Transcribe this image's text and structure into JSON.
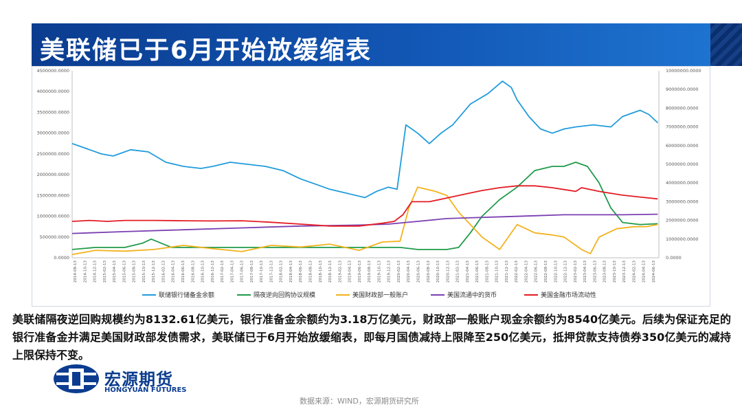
{
  "slide": {
    "title": "美联储已于6月开始放缓缩表",
    "body": "美联储隔夜逆回购规模约为8132.61亿美元，银行准备金余额约为3.18万亿美元，财政部一般账户现金余额约为8540亿美元。后续为保证充足的银行准备金并满足美国财政部发债需求，美联储已于6月开始放缓缩表，即每月国债减持上限降至250亿美元，抵押贷款支持债券350亿美元的减持上限保持不变。",
    "source": "数据来源：WIND，宏源期货研究所",
    "logo_cn": "宏源期货",
    "logo_en": "HONGYUAN FUTURES",
    "colors": {
      "title_bg": "#0b3c8f",
      "logo": "#0b3c8f",
      "accent_stripe": "#163f86"
    }
  },
  "chart_data": {
    "type": "line",
    "y_left": {
      "ticks": [
        "0.0000",
        "500000.0000",
        "1000000.0000",
        "1500000.0000",
        "2000000.0000",
        "2500000.0000",
        "3000000.0000",
        "3500000.0000",
        "4000000.0000",
        "4500000.0000"
      ],
      "range": [
        0,
        4500000
      ]
    },
    "y_right": {
      "ticks": [
        "0.0000",
        "1000000.0000",
        "2000000.0000",
        "3000000.0000",
        "4000000.0000",
        "5000000.0000",
        "6000000.0000",
        "7000000.0000",
        "8000000.0000",
        "9000000.0000",
        "10000000.0000"
      ],
      "range": [
        0,
        10000000
      ]
    },
    "x_labels": [
      "2014-08-13",
      "2014-10-13",
      "2014-12-13",
      "2015-02-13",
      "2015-04-13",
      "2015-06-13",
      "2015-08-13",
      "2015-10-13",
      "2015-12-13",
      "2016-02-13",
      "2016-04-13",
      "2016-06-13",
      "2016-08-13",
      "2016-10-13",
      "2016-12-13",
      "2017-02-13",
      "2017-04-13",
      "2017-06-13",
      "2017-08-13",
      "2017-10-13",
      "2017-12-13",
      "2018-02-13",
      "2018-04-13",
      "2018-06-13",
      "2018-08-13",
      "2018-10-13",
      "2018-12-13",
      "2019-02-13",
      "2019-04-13",
      "2019-06-13",
      "2019-08-13",
      "2019-10-13",
      "2019-12-13",
      "2020-02-13",
      "2020-04-13",
      "2020-06-13",
      "2020-08-13",
      "2020-10-13",
      "2020-12-13",
      "2021-02-13",
      "2021-04-13",
      "2021-06-13",
      "2021-08-13",
      "2021-10-13",
      "2021-12-13",
      "2022-02-13",
      "2022-04-13",
      "2022-06-13",
      "2022-08-13",
      "2022-10-13",
      "2022-12-13",
      "2023-02-13",
      "2023-04-13",
      "2023-06-13",
      "2023-08-13",
      "2023-10-13",
      "2023-12-13",
      "2024-02-13",
      "2024-04-13",
      "2024-06-13"
    ],
    "grid": false,
    "legend_position": "bottom",
    "series": [
      {
        "name": "联储银行储备金余额",
        "axis": "left",
        "color": "#1f9bdc",
        "x": [
          2014.6,
          2014.9,
          2015.1,
          2015.3,
          2015.6,
          2015.9,
          2016.2,
          2016.5,
          2016.8,
          2017.0,
          2017.3,
          2017.6,
          2017.9,
          2018.2,
          2018.5,
          2018.8,
          2019.0,
          2019.3,
          2019.6,
          2019.8,
          2020.0,
          2020.15,
          2020.3,
          2020.5,
          2020.7,
          2020.9,
          2021.1,
          2021.4,
          2021.7,
          2021.95,
          2022.1,
          2022.2,
          2022.4,
          2022.6,
          2022.8,
          2023.0,
          2023.2,
          2023.5,
          2023.8,
          2024.0,
          2024.3,
          2024.45,
          2024.6
        ],
        "values": [
          2750000,
          2600000,
          2500000,
          2450000,
          2600000,
          2550000,
          2300000,
          2200000,
          2150000,
          2200000,
          2300000,
          2250000,
          2200000,
          2100000,
          1900000,
          1750000,
          1650000,
          1550000,
          1450000,
          1600000,
          1700000,
          1650000,
          3200000,
          3000000,
          2750000,
          3000000,
          3200000,
          3700000,
          3950000,
          4250000,
          4100000,
          3800000,
          3400000,
          3100000,
          3000000,
          3100000,
          3150000,
          3200000,
          3150000,
          3400000,
          3550000,
          3450000,
          3250000
        ]
      },
      {
        "name": "隔夜逆向回购协议规模",
        "axis": "left",
        "color": "#1f9a4a",
        "x": [
          2014.6,
          2015.0,
          2015.5,
          2015.8,
          2015.95,
          2016.3,
          2016.8,
          2017.3,
          2017.8,
          2018.3,
          2018.8,
          2019.3,
          2019.8,
          2020.2,
          2020.5,
          2020.8,
          2021.0,
          2021.2,
          2021.4,
          2021.6,
          2021.9,
          2022.2,
          2022.5,
          2022.8,
          2023.0,
          2023.2,
          2023.4,
          2023.6,
          2023.8,
          2024.0,
          2024.3,
          2024.6
        ],
        "values": [
          200000,
          250000,
          250000,
          350000,
          450000,
          250000,
          250000,
          250000,
          250000,
          250000,
          250000,
          250000,
          250000,
          250000,
          200000,
          200000,
          200000,
          250000,
          600000,
          1000000,
          1400000,
          1700000,
          2100000,
          2200000,
          2200000,
          2300000,
          2200000,
          1800000,
          1200000,
          850000,
          800000,
          820000
        ]
      },
      {
        "name": "美国财政部一般账户",
        "axis": "left",
        "color": "#f2b21d",
        "x": [
          2014.6,
          2015.0,
          2015.5,
          2016.0,
          2016.5,
          2017.0,
          2017.5,
          2018.0,
          2018.5,
          2019.0,
          2019.5,
          2019.9,
          2020.2,
          2020.35,
          2020.5,
          2020.8,
          2021.0,
          2021.2,
          2021.4,
          2021.6,
          2021.9,
          2022.2,
          2022.5,
          2022.8,
          2023.0,
          2023.3,
          2023.45,
          2023.6,
          2023.9,
          2024.2,
          2024.4,
          2024.6
        ],
        "values": [
          80000,
          180000,
          160000,
          200000,
          300000,
          220000,
          150000,
          300000,
          260000,
          330000,
          180000,
          380000,
          400000,
          1200000,
          1700000,
          1600000,
          1500000,
          1100000,
          800000,
          500000,
          200000,
          800000,
          600000,
          550000,
          500000,
          200000,
          100000,
          500000,
          700000,
          750000,
          750000,
          800000
        ]
      },
      {
        "name": "美国流通中的货币",
        "axis": "right",
        "color": "#7a3fb0",
        "x": [
          2014.6,
          2015.5,
          2016.5,
          2017.5,
          2018.5,
          2019.5,
          2020.0,
          2020.5,
          2021.0,
          2021.5,
          2022.0,
          2022.5,
          2023.0,
          2023.5,
          2024.0,
          2024.6
        ],
        "values": [
          1300000,
          1400000,
          1500000,
          1600000,
          1700000,
          1750000,
          1800000,
          1950000,
          2100000,
          2150000,
          2200000,
          2250000,
          2300000,
          2300000,
          2300000,
          2330000
        ]
      },
      {
        "name": "美国金融市场流动性",
        "axis": "right",
        "color": "#e31b23",
        "x": [
          2014.6,
          2014.9,
          2015.2,
          2015.5,
          2016.0,
          2016.5,
          2017.0,
          2017.5,
          2018.0,
          2018.5,
          2019.0,
          2019.5,
          2019.9,
          2020.1,
          2020.25,
          2020.4,
          2020.7,
          2021.0,
          2021.3,
          2021.6,
          2021.9,
          2022.2,
          2022.5,
          2022.8,
          2023.0,
          2023.2,
          2023.3,
          2023.6,
          2024.0,
          2024.3,
          2024.6
        ],
        "values": [
          1950000,
          2000000,
          1950000,
          2000000,
          2000000,
          1980000,
          1970000,
          1980000,
          1900000,
          1800000,
          1700000,
          1700000,
          1850000,
          1950000,
          2300000,
          3000000,
          3000000,
          3200000,
          3400000,
          3600000,
          3750000,
          3850000,
          3850000,
          3750000,
          3650000,
          3550000,
          3750000,
          3550000,
          3350000,
          3250000,
          3150000
        ]
      }
    ]
  }
}
